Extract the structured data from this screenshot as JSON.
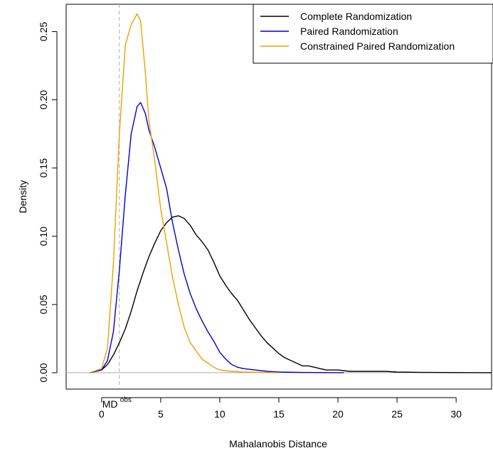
{
  "chart_data": {
    "type": "line",
    "xlabel": "Mahalanobis Distance",
    "ylabel": "Density",
    "xlim": [
      -3,
      33
    ],
    "ylim": [
      -0.012,
      0.27
    ],
    "x_ticks": [
      0,
      5,
      10,
      15,
      20,
      25,
      30
    ],
    "y_ticks": [
      0.0,
      0.05,
      0.1,
      0.15,
      0.2,
      0.25
    ],
    "y_tick_labels": [
      "0.00",
      "0.05",
      "0.10",
      "0.15",
      "0.20",
      "0.25"
    ],
    "grid": false,
    "legend_position": "top-right",
    "reference_line": {
      "x": 1.5,
      "style": "dashed",
      "color": "#aaaaaa",
      "label": "MD",
      "label_sup": "obs"
    },
    "baseline": {
      "y": 0,
      "color": "#aaaaaa"
    },
    "series": [
      {
        "name": "Complete Randomization",
        "color": "#000000",
        "points": [
          [
            -1,
            0
          ],
          [
            0,
            0.002
          ],
          [
            0.5,
            0.006
          ],
          [
            1,
            0.013
          ],
          [
            1.5,
            0.022
          ],
          [
            2,
            0.032
          ],
          [
            2.5,
            0.045
          ],
          [
            3,
            0.06
          ],
          [
            3.5,
            0.073
          ],
          [
            4,
            0.085
          ],
          [
            4.5,
            0.095
          ],
          [
            5,
            0.104
          ],
          [
            5.5,
            0.11
          ],
          [
            6,
            0.114
          ],
          [
            6.5,
            0.115
          ],
          [
            7,
            0.113
          ],
          [
            7.5,
            0.108
          ],
          [
            8,
            0.101
          ],
          [
            8.5,
            0.096
          ],
          [
            9,
            0.09
          ],
          [
            9.5,
            0.081
          ],
          [
            10,
            0.071
          ],
          [
            10.5,
            0.064
          ],
          [
            11,
            0.058
          ],
          [
            11.5,
            0.053
          ],
          [
            12,
            0.046
          ],
          [
            12.5,
            0.039
          ],
          [
            13,
            0.033
          ],
          [
            13.5,
            0.027
          ],
          [
            14,
            0.022
          ],
          [
            14.5,
            0.018
          ],
          [
            15,
            0.014
          ],
          [
            15.5,
            0.011
          ],
          [
            16,
            0.009
          ],
          [
            16.5,
            0.007
          ],
          [
            17,
            0.005
          ],
          [
            17.5,
            0.005
          ],
          [
            18,
            0.004
          ],
          [
            18.5,
            0.003
          ],
          [
            19,
            0.002
          ],
          [
            20,
            0.002
          ],
          [
            21,
            0.001
          ],
          [
            22,
            0.001
          ],
          [
            23,
            0.001
          ],
          [
            24,
            0.001
          ],
          [
            25,
            0.0005
          ],
          [
            27,
            0.0003
          ],
          [
            30,
            0.0001
          ],
          [
            33,
            0
          ]
        ]
      },
      {
        "name": "Paired Randomization",
        "color": "#0000cc",
        "points": [
          [
            -1,
            0
          ],
          [
            0,
            0.002
          ],
          [
            0.5,
            0.009
          ],
          [
            1,
            0.03
          ],
          [
            1.5,
            0.075
          ],
          [
            2,
            0.13
          ],
          [
            2.5,
            0.175
          ],
          [
            3,
            0.195
          ],
          [
            3.3,
            0.198
          ],
          [
            3.7,
            0.19
          ],
          [
            4,
            0.178
          ],
          [
            4.5,
            0.165
          ],
          [
            5,
            0.15
          ],
          [
            5.5,
            0.135
          ],
          [
            6,
            0.11
          ],
          [
            6.5,
            0.09
          ],
          [
            7,
            0.072
          ],
          [
            7.5,
            0.058
          ],
          [
            8,
            0.047
          ],
          [
            8.5,
            0.038
          ],
          [
            9,
            0.03
          ],
          [
            9.5,
            0.023
          ],
          [
            10,
            0.015
          ],
          [
            10.5,
            0.01
          ],
          [
            11,
            0.006
          ],
          [
            11.5,
            0.004
          ],
          [
            12,
            0.003
          ],
          [
            13,
            0.002
          ],
          [
            14,
            0.001
          ],
          [
            15,
            0.0005
          ],
          [
            17,
            0.0002
          ],
          [
            20.5,
            0
          ]
        ]
      },
      {
        "name": "Constrained Paired Randomization",
        "color": "#f0a000",
        "points": [
          [
            -1,
            0
          ],
          [
            0,
            0.003
          ],
          [
            0.5,
            0.018
          ],
          [
            1,
            0.08
          ],
          [
            1.5,
            0.175
          ],
          [
            2,
            0.24
          ],
          [
            2.5,
            0.255
          ],
          [
            3,
            0.263
          ],
          [
            3.3,
            0.258
          ],
          [
            3.7,
            0.22
          ],
          [
            4,
            0.185
          ],
          [
            4.5,
            0.155
          ],
          [
            5,
            0.12
          ],
          [
            5.5,
            0.095
          ],
          [
            6,
            0.07
          ],
          [
            6.5,
            0.05
          ],
          [
            7,
            0.033
          ],
          [
            7.5,
            0.022
          ],
          [
            8,
            0.016
          ],
          [
            8.5,
            0.01
          ],
          [
            9,
            0.007
          ],
          [
            9.5,
            0.004
          ],
          [
            10,
            0.002
          ],
          [
            11,
            0.001
          ],
          [
            12,
            0.0005
          ],
          [
            14,
            0.0002
          ],
          [
            15,
            0
          ]
        ]
      }
    ]
  }
}
